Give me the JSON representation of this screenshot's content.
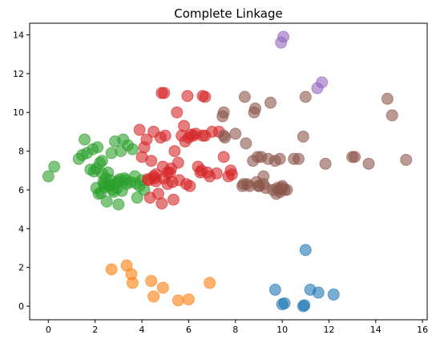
{
  "chart_data": {
    "type": "scatter",
    "title": "Complete Linkage",
    "xlabel": "",
    "ylabel": "",
    "xlim": [
      -0.8,
      16.2
    ],
    "ylim": [
      -0.7,
      14.6
    ],
    "xticks": [
      0,
      2,
      4,
      6,
      8,
      10,
      12,
      14,
      16
    ],
    "xtick_labels": [
      "0",
      "2",
      "4",
      "6",
      "8",
      "10",
      "12",
      "14",
      "16"
    ],
    "yticks": [
      0,
      2,
      4,
      6,
      8,
      10,
      12,
      14
    ],
    "ytick_labels": [
      "0",
      "2",
      "4",
      "6",
      "8",
      "10",
      "12",
      "14"
    ],
    "grid": false,
    "legend": false,
    "point_alpha": 0.6,
    "series": [
      {
        "color": "#1f77b4",
        "x": [
          9.7,
          10.0,
          10.1,
          10.95,
          11.0,
          11.2,
          11.55,
          12.2,
          10.9
        ],
        "y": [
          0.85,
          0.1,
          0.15,
          0.05,
          2.9,
          0.85,
          0.7,
          0.6,
          0.0
        ]
      },
      {
        "color": "#ff7f0e",
        "x": [
          2.7,
          3.35,
          3.55,
          3.6,
          4.4,
          4.5,
          4.9,
          5.55,
          6.0,
          6.9
        ],
        "y": [
          1.9,
          2.1,
          1.65,
          1.2,
          1.3,
          0.5,
          0.95,
          0.3,
          0.35,
          1.2
        ]
      },
      {
        "color": "#2ca02c",
        "x": [
          0.0,
          0.25,
          1.3,
          1.45,
          1.55,
          1.65,
          1.9,
          1.95,
          2.05,
          2.1,
          2.15,
          2.2,
          2.25,
          2.3,
          2.35,
          2.4,
          2.45,
          2.5,
          2.55,
          2.6,
          2.65,
          2.7,
          2.75,
          2.8,
          2.85,
          2.9,
          2.95,
          3.0,
          3.05,
          3.1,
          3.15,
          3.2,
          3.3,
          3.35,
          3.4,
          3.5,
          3.6,
          3.7,
          3.8,
          3.9,
          4.0,
          4.1,
          2.05,
          2.3,
          2.6,
          3.0,
          1.8,
          2.4,
          3.25,
          3.75
        ],
        "y": [
          6.7,
          7.2,
          7.6,
          7.8,
          8.6,
          7.9,
          8.1,
          6.95,
          7.1,
          8.2,
          5.8,
          7.4,
          5.85,
          7.5,
          6.4,
          6.3,
          6.6,
          5.4,
          6.9,
          6.2,
          6.5,
          7.9,
          6.0,
          5.9,
          8.5,
          6.35,
          6.1,
          5.25,
          6.55,
          8.0,
          5.95,
          8.6,
          6.5,
          6.3,
          8.3,
          6.4,
          8.1,
          6.7,
          5.6,
          6.2,
          6.5,
          6.0,
          6.1,
          6.85,
          6.25,
          6.45,
          7.05,
          6.15,
          6.6,
          6.35
        ]
      },
      {
        "color": "#d62728",
        "x": [
          3.9,
          4.0,
          4.1,
          4.2,
          4.3,
          4.35,
          4.4,
          4.5,
          4.55,
          4.6,
          4.7,
          4.8,
          4.85,
          4.9,
          4.95,
          5.0,
          5.1,
          5.2,
          5.25,
          5.3,
          5.35,
          5.4,
          5.5,
          5.55,
          5.6,
          5.7,
          5.8,
          5.85,
          5.9,
          6.0,
          6.05,
          6.1,
          6.2,
          6.3,
          6.4,
          6.5,
          6.55,
          6.6,
          6.7,
          6.8,
          6.9,
          7.0,
          7.2,
          7.3,
          7.5,
          7.7,
          7.8,
          7.85,
          4.85,
          4.95,
          5.95,
          6.6,
          6.7,
          4.5,
          4.6,
          5.1,
          4.25
        ],
        "y": [
          9.1,
          7.7,
          8.2,
          8.6,
          6.5,
          5.6,
          7.5,
          9.0,
          6.6,
          6.8,
          5.8,
          8.7,
          5.3,
          7.2,
          6.6,
          8.8,
          6.3,
          6.9,
          7.1,
          6.4,
          5.5,
          8.0,
          10.0,
          7.4,
          6.5,
          8.8,
          9.3,
          8.5,
          6.3,
          8.7,
          6.2,
          8.85,
          8.8,
          8.9,
          7.2,
          6.9,
          7.0,
          8.8,
          8.8,
          6.9,
          6.7,
          9.0,
          6.85,
          9.0,
          7.7,
          6.7,
          7.0,
          6.8,
          11.0,
          11.0,
          10.85,
          10.85,
          10.8,
          6.7,
          6.45,
          6.9,
          6.55
        ]
      },
      {
        "color": "#9467bd",
        "x": [
          9.95,
          10.05,
          11.5,
          11.7
        ],
        "y": [
          13.6,
          13.9,
          11.25,
          11.55
        ]
      },
      {
        "color": "#8c564b",
        "x": [
          7.45,
          7.5,
          7.55,
          8.0,
          8.3,
          8.35,
          8.4,
          8.45,
          8.5,
          8.6,
          8.75,
          8.8,
          8.85,
          8.9,
          9.0,
          9.1,
          9.2,
          9.3,
          9.4,
          9.5,
          9.6,
          9.7,
          9.75,
          9.8,
          9.85,
          9.9,
          10.0,
          10.1,
          10.2,
          10.5,
          10.7,
          10.9,
          11.0,
          11.85,
          13.0,
          13.1,
          13.7,
          14.5,
          14.7,
          15.3,
          7.5,
          8.95,
          9.0,
          9.2,
          9.9,
          10.0
        ],
        "y": [
          9.8,
          10.0,
          8.7,
          8.9,
          6.2,
          6.3,
          10.8,
          8.4,
          6.3,
          6.2,
          7.5,
          10.0,
          10.2,
          6.4,
          6.2,
          7.7,
          6.7,
          6.1,
          7.6,
          10.5,
          6.0,
          7.5,
          5.8,
          6.1,
          6.0,
          5.9,
          6.1,
          6.0,
          6.0,
          7.6,
          7.6,
          8.75,
          10.8,
          7.35,
          7.7,
          7.7,
          7.35,
          10.7,
          9.85,
          7.55,
          8.8,
          7.7,
          6.2,
          6.3,
          7.6,
          6.2
        ]
      }
    ]
  }
}
